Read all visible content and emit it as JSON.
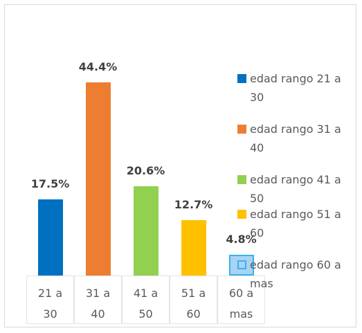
{
  "chart_data": {
    "type": "bar",
    "categories": [
      "21 a 30",
      "31 a 40",
      "41 a 50",
      "51 a 60",
      "60 a mas"
    ],
    "values": [
      17.5,
      44.4,
      20.6,
      12.7,
      4.8
    ],
    "value_labels": [
      "17.5%",
      "44.4%",
      "20.6%",
      "12.7%",
      "4.8%"
    ],
    "colors": [
      "#0070c0",
      "#ed7d31",
      "#92d050",
      "#ffc000",
      "#a9d3f3"
    ],
    "legend": [
      "edad rango 21 a 30",
      "edad rango 31 a 40",
      "edad rango 41 a 50",
      "edad rango 51 a 60",
      "edad rango 60 a mas"
    ],
    "legend_position": "right"
  }
}
